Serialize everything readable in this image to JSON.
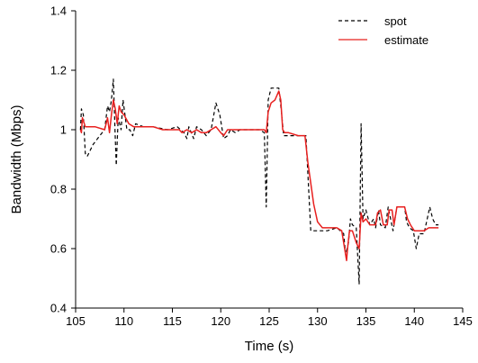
{
  "chart_data": {
    "type": "line",
    "title": "",
    "xlabel": "Time (s)",
    "ylabel": "Bandwidth (Mbps)",
    "xlim": [
      105,
      145
    ],
    "ylim": [
      0.4,
      1.4
    ],
    "x_ticks": [
      105,
      110,
      115,
      120,
      125,
      130,
      135,
      140,
      145
    ],
    "x_tick_labels": [
      "105",
      "110",
      "115",
      "120",
      "125",
      "130",
      "135",
      "140",
      "145"
    ],
    "y_ticks": [
      0.4,
      0.6,
      0.8,
      1.0,
      1.2,
      1.4
    ],
    "y_tick_labels": [
      "0.4",
      "0.6",
      "0.8",
      "1",
      "1.2",
      "1.4"
    ],
    "grid": false,
    "legend_position": "top-right",
    "series": [
      {
        "name": "spot",
        "color": "#000000",
        "style": "dashed",
        "points": [
          [
            105.5,
            1.0
          ],
          [
            105.6,
            1.07
          ],
          [
            105.8,
            1.05
          ],
          [
            106.0,
            0.92
          ],
          [
            106.2,
            0.91
          ],
          [
            106.8,
            0.95
          ],
          [
            107.5,
            0.98
          ],
          [
            108.0,
            1.0
          ],
          [
            108.3,
            1.08
          ],
          [
            108.5,
            1.06
          ],
          [
            108.7,
            1.1
          ],
          [
            108.9,
            1.17
          ],
          [
            109.1,
            0.97
          ],
          [
            109.2,
            0.88
          ],
          [
            109.4,
            1.04
          ],
          [
            109.7,
            1.0
          ],
          [
            109.9,
            1.1
          ],
          [
            110.3,
            1.0
          ],
          [
            110.6,
            1.0
          ],
          [
            110.9,
            0.98
          ],
          [
            111.2,
            1.02
          ],
          [
            112.0,
            1.01
          ],
          [
            113.0,
            1.01
          ],
          [
            114.5,
            1.0
          ],
          [
            115.5,
            1.01
          ],
          [
            116.2,
            0.99
          ],
          [
            116.5,
            0.97
          ],
          [
            116.7,
            1.01
          ],
          [
            117.2,
            0.97
          ],
          [
            117.5,
            1.01
          ],
          [
            118.0,
            1.0
          ],
          [
            118.5,
            0.98
          ],
          [
            119.0,
            1.0
          ],
          [
            119.5,
            1.09
          ],
          [
            119.9,
            1.05
          ],
          [
            120.3,
            0.97
          ],
          [
            120.7,
            0.98
          ],
          [
            121.0,
            1.0
          ],
          [
            121.5,
            0.99
          ],
          [
            122.0,
            1.0
          ],
          [
            123.0,
            1.0
          ],
          [
            124.0,
            1.0
          ],
          [
            124.5,
            0.99
          ],
          [
            124.7,
            0.74
          ],
          [
            124.9,
            1.1
          ],
          [
            125.2,
            1.14
          ],
          [
            126.0,
            1.14
          ],
          [
            126.3,
            1.05
          ],
          [
            126.5,
            0.98
          ],
          [
            127.0,
            0.98
          ],
          [
            128.0,
            0.98
          ],
          [
            128.5,
            0.98
          ],
          [
            128.8,
            0.98
          ],
          [
            129.3,
            0.66
          ],
          [
            131.0,
            0.66
          ],
          [
            132.0,
            0.67
          ],
          [
            132.7,
            0.65
          ],
          [
            132.9,
            0.58
          ],
          [
            133.2,
            0.62
          ],
          [
            133.4,
            0.7
          ],
          [
            133.6,
            0.68
          ],
          [
            134.0,
            0.67
          ],
          [
            134.3,
            0.48
          ],
          [
            134.5,
            1.02
          ],
          [
            134.7,
            0.7
          ],
          [
            135.0,
            0.73
          ],
          [
            135.4,
            0.68
          ],
          [
            135.8,
            0.7
          ],
          [
            136.0,
            0.67
          ],
          [
            136.3,
            0.73
          ],
          [
            136.5,
            0.68
          ],
          [
            137.0,
            0.67
          ],
          [
            137.3,
            0.74
          ],
          [
            137.8,
            0.66
          ],
          [
            138.2,
            0.74
          ],
          [
            138.5,
            0.74
          ],
          [
            139.0,
            0.74
          ],
          [
            139.2,
            0.69
          ],
          [
            139.5,
            0.67
          ],
          [
            139.9,
            0.66
          ],
          [
            140.2,
            0.6
          ],
          [
            140.5,
            0.65
          ],
          [
            141.0,
            0.65
          ],
          [
            141.6,
            0.74
          ],
          [
            141.9,
            0.7
          ],
          [
            142.2,
            0.68
          ],
          [
            142.5,
            0.68
          ]
        ]
      },
      {
        "name": "estimate",
        "color": "#e8201f",
        "style": "solid",
        "points": [
          [
            105.5,
            1.0
          ],
          [
            105.6,
            0.99
          ],
          [
            105.7,
            1.04
          ],
          [
            106.0,
            1.01
          ],
          [
            107.0,
            1.01
          ],
          [
            108.0,
            1.0
          ],
          [
            108.3,
            1.04
          ],
          [
            108.5,
            0.99
          ],
          [
            108.7,
            1.05
          ],
          [
            108.9,
            1.1
          ],
          [
            109.1,
            1.07
          ],
          [
            109.3,
            1.02
          ],
          [
            109.5,
            1.08
          ],
          [
            109.7,
            1.06
          ],
          [
            110.0,
            1.05
          ],
          [
            110.5,
            1.02
          ],
          [
            111.0,
            1.01
          ],
          [
            112.0,
            1.01
          ],
          [
            113.0,
            1.01
          ],
          [
            114.0,
            1.0
          ],
          [
            115.0,
            1.0
          ],
          [
            115.7,
            1.0
          ],
          [
            116.0,
            0.99
          ],
          [
            116.5,
            1.0
          ],
          [
            117.0,
            0.99
          ],
          [
            117.5,
            1.0
          ],
          [
            118.0,
            0.99
          ],
          [
            118.5,
            0.99
          ],
          [
            119.0,
            1.0
          ],
          [
            119.5,
            1.01
          ],
          [
            120.0,
            0.99
          ],
          [
            120.3,
            0.98
          ],
          [
            120.7,
            1.0
          ],
          [
            121.0,
            1.0
          ],
          [
            122.0,
            1.0
          ],
          [
            123.0,
            1.0
          ],
          [
            124.0,
            1.0
          ],
          [
            124.5,
            1.0
          ],
          [
            124.7,
            0.99
          ],
          [
            124.9,
            1.06
          ],
          [
            125.2,
            1.09
          ],
          [
            125.6,
            1.1
          ],
          [
            126.0,
            1.13
          ],
          [
            126.2,
            1.1
          ],
          [
            126.4,
            1.0
          ],
          [
            126.6,
            0.99
          ],
          [
            127.0,
            0.99
          ],
          [
            128.0,
            0.98
          ],
          [
            128.7,
            0.98
          ],
          [
            129.0,
            0.89
          ],
          [
            129.3,
            0.82
          ],
          [
            129.6,
            0.75
          ],
          [
            130.0,
            0.69
          ],
          [
            130.5,
            0.67
          ],
          [
            131.0,
            0.67
          ],
          [
            132.0,
            0.67
          ],
          [
            132.5,
            0.66
          ],
          [
            132.8,
            0.6
          ],
          [
            133.0,
            0.56
          ],
          [
            133.1,
            0.6
          ],
          [
            133.3,
            0.66
          ],
          [
            133.6,
            0.66
          ],
          [
            134.0,
            0.62
          ],
          [
            134.3,
            0.6
          ],
          [
            134.5,
            0.72
          ],
          [
            134.7,
            0.69
          ],
          [
            135.0,
            0.7
          ],
          [
            135.4,
            0.68
          ],
          [
            135.8,
            0.68
          ],
          [
            136.0,
            0.68
          ],
          [
            136.2,
            0.72
          ],
          [
            136.5,
            0.73
          ],
          [
            136.8,
            0.68
          ],
          [
            137.2,
            0.68
          ],
          [
            137.4,
            0.73
          ],
          [
            137.7,
            0.73
          ],
          [
            137.9,
            0.68
          ],
          [
            138.2,
            0.74
          ],
          [
            138.5,
            0.74
          ],
          [
            139.0,
            0.74
          ],
          [
            139.3,
            0.7
          ],
          [
            139.6,
            0.68
          ],
          [
            140.0,
            0.66
          ],
          [
            140.5,
            0.66
          ],
          [
            141.0,
            0.66
          ],
          [
            141.5,
            0.67
          ],
          [
            142.0,
            0.67
          ],
          [
            142.5,
            0.67
          ]
        ]
      }
    ]
  }
}
